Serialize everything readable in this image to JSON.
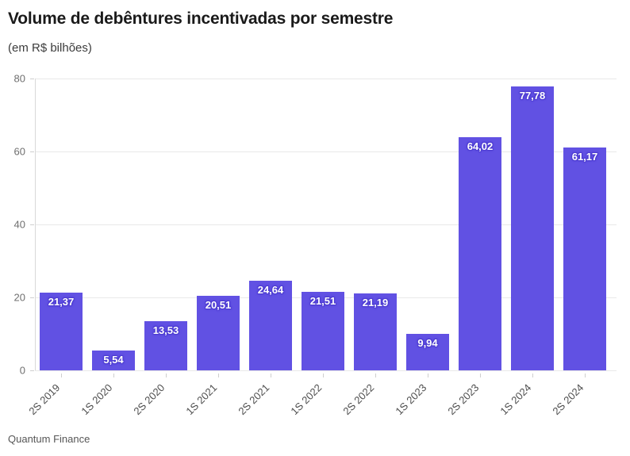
{
  "header": {
    "title": "Volume de debêntures incentivadas por semestre",
    "subtitle": "(em R$ bilhões)"
  },
  "source": "Quantum Finance",
  "colors": {
    "bar": "#6151e3",
    "label_halo": "#4c3bd1",
    "grid": "#e9e9e9",
    "axis": "#d9d9d9",
    "y_tick_label": "#6f6f6f",
    "x_tick_label": "#4d4d4d",
    "title": "#1a1a1a"
  },
  "chart_data": {
    "type": "bar",
    "title": "Volume de debêntures incentivadas por semestre",
    "subtitle": "(em R$ bilhões)",
    "categories": [
      "2S 2019",
      "1S 2020",
      "2S 2020",
      "1S 2021",
      "2S 2021",
      "1S 2022",
      "2S 2022",
      "1S 2023",
      "2S 2023",
      "1S 2024",
      "2S 2024"
    ],
    "values": [
      21.37,
      5.54,
      13.53,
      20.51,
      24.64,
      21.51,
      21.19,
      9.94,
      64.02,
      77.78,
      61.17
    ],
    "value_labels": [
      "21,37",
      "5,54",
      "13,53",
      "20,51",
      "24,64",
      "21,51",
      "21,19",
      "9,94",
      "64,02",
      "77,78",
      "61,17"
    ],
    "xlabel": "",
    "ylabel": "",
    "ylim": [
      0,
      80
    ],
    "yticks": [
      0,
      20,
      40,
      60,
      80
    ],
    "grid": true,
    "legend": false,
    "value_label_position": "inside-top",
    "x_label_rotation": -45,
    "source": "Quantum Finance"
  }
}
